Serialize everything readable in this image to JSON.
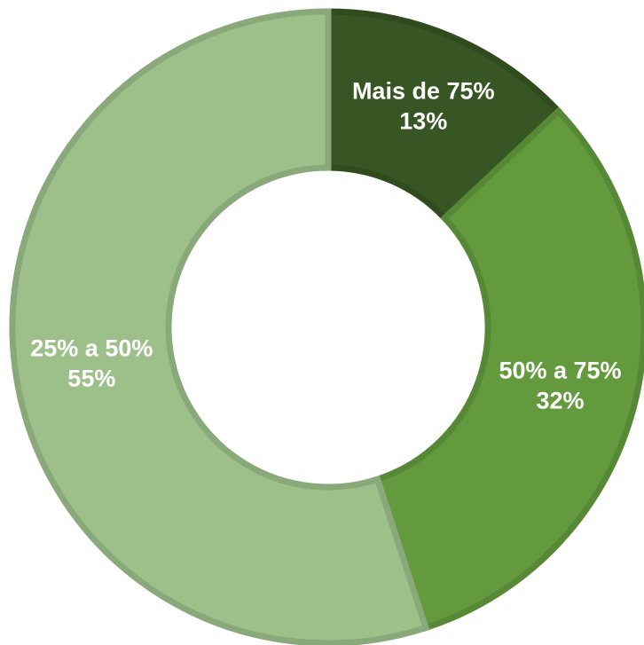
{
  "chart_data": {
    "type": "donut",
    "categories": [
      "Mais de 75%",
      "50% a 75%",
      "25% a 50%"
    ],
    "values": [
      13,
      32,
      55
    ],
    "value_labels": [
      "13%",
      "32%",
      "55%"
    ],
    "colors": [
      "#375623",
      "#629a3d",
      "#9dc08b"
    ]
  }
}
